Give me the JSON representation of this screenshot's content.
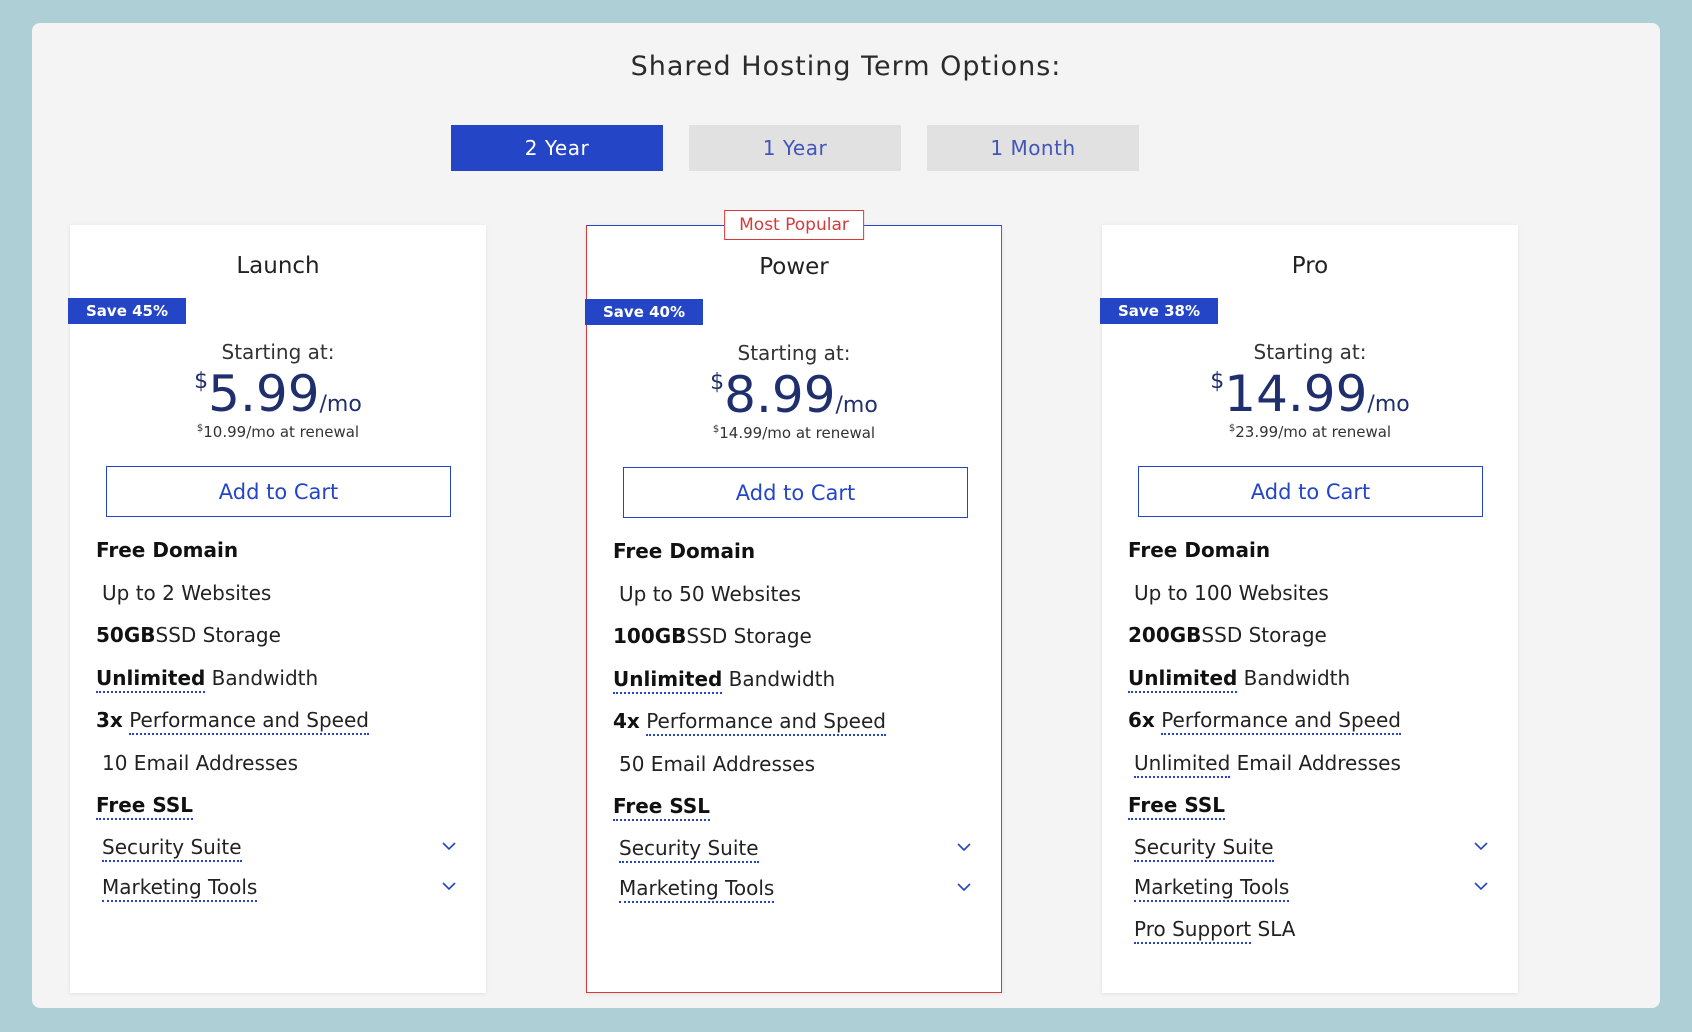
{
  "header": {
    "title": "Shared Hosting Term Options:"
  },
  "terms": [
    {
      "label": "2 Year",
      "active": true
    },
    {
      "label": "1 Year",
      "active": false
    },
    {
      "label": "1 Month",
      "active": false
    }
  ],
  "colors": {
    "accent": "#2446c6",
    "popular": "#d73a3a",
    "price": "#1f2f6e"
  },
  "plans": [
    {
      "name": "Launch",
      "save": "Save 45%",
      "starting": "Starting at:",
      "currency": "$",
      "price": "5.99",
      "per": "/mo",
      "renewal_price": "10.99",
      "renewal_text": "/mo at renewal",
      "cart_label": "Add to Cart",
      "free_domain": "Free Domain",
      "websites": "Up to 2 Websites",
      "storage_bold": "50GB",
      "storage_rest": "SSD Storage",
      "bandwidth_bold": "Unlimited",
      "bandwidth_rest": " Bandwidth",
      "perf_bold": "3x",
      "perf_rest": "Performance and Speed",
      "email": "10 Email Addresses",
      "ssl": "Free SSL",
      "security": "Security Suite",
      "marketing": "Marketing Tools"
    },
    {
      "name": "Power",
      "popular_label": "Most Popular",
      "save": "Save 40%",
      "starting": "Starting at:",
      "currency": "$",
      "price": "8.99",
      "per": "/mo",
      "renewal_price": "14.99",
      "renewal_text": "/mo at renewal",
      "cart_label": "Add to Cart",
      "free_domain": "Free Domain",
      "websites": "Up to 50 Websites",
      "storage_bold": "100GB",
      "storage_rest": "SSD Storage",
      "bandwidth_bold": "Unlimited",
      "bandwidth_rest": " Bandwidth",
      "perf_bold": "4x",
      "perf_rest": "Performance and Speed",
      "email": "50 Email Addresses",
      "ssl": "Free SSL",
      "security": "Security Suite",
      "marketing": "Marketing Tools"
    },
    {
      "name": "Pro",
      "save": "Save 38%",
      "starting": "Starting at:",
      "currency": "$",
      "price": "14.99",
      "per": "/mo",
      "renewal_price": "23.99",
      "renewal_text": "/mo at renewal",
      "cart_label": "Add to Cart",
      "free_domain": "Free Domain",
      "websites": "Up to 100 Websites",
      "storage_bold": "200GB",
      "storage_rest": "SSD Storage",
      "bandwidth_bold": "Unlimited",
      "bandwidth_rest": " Bandwidth",
      "perf_bold": "6x",
      "perf_rest": "Performance and Speed",
      "email_dotted": "Unlimited",
      "email_rest": " Email Addresses",
      "ssl": "Free SSL",
      "security": "Security Suite",
      "marketing": "Marketing Tools",
      "support_dotted": "Pro Support",
      "support_rest": " SLA"
    }
  ]
}
